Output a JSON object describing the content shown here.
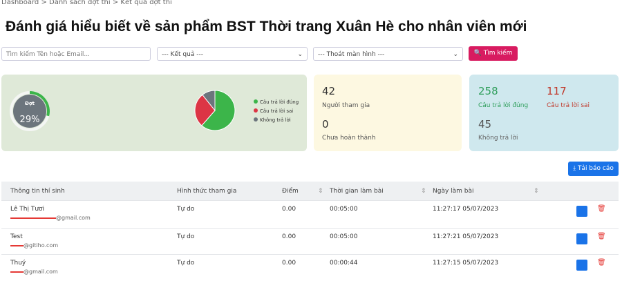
{
  "breadcrumb": [
    "Dashboard",
    "Danh sách đợt thi",
    "Kết quả đợt thi"
  ],
  "title": "Đánh giá hiểu biết về sản phẩm BST Thời trang Xuân Hè cho nhân viên mới",
  "filters": {
    "search_placeholder": "Tìm kiếm Tên hoặc Email...",
    "result_select": "--- Kết quả ---",
    "exit_select": "--- Thoát màn hình ---",
    "search_button": "Tìm kiếm"
  },
  "gauge": {
    "label": "Đợt",
    "value": 29,
    "value_label": "29%"
  },
  "stats": {
    "participants": {
      "value": 42,
      "label": "Người tham gia"
    },
    "not_completed": {
      "value": 0,
      "label": "Chưa hoàn thành"
    },
    "correct": {
      "value": 258,
      "label": "Câu trả lời đúng",
      "color": "#3cb54a"
    },
    "wrong": {
      "value": 117,
      "label": "Câu trả lời sai",
      "color": "#dc3545"
    },
    "no_answer": {
      "value": 45,
      "label": "Không trả lời",
      "color": "#6c757d"
    }
  },
  "legend": [
    "Câu trả lời đúng",
    "Câu trả lời sai",
    "Không trả lời"
  ],
  "download_button": "Tải báo cáo",
  "table": {
    "headers": [
      "Thông tin thí sinh",
      "Hình thức tham gia",
      "Điểm",
      "Thời gian làm bài",
      "Ngày làm bài"
    ],
    "rows": [
      [
        "Lê Thị Tươi",
        "@gmail.com",
        "Tự do",
        "0.00",
        "00:05:00",
        "11:27:17 05/07/2023"
      ],
      [
        "Test",
        "@gitiho.com",
        "Tự do",
        "0.00",
        "00:05:00",
        "11:27:21 05/07/2023"
      ],
      [
        "Thuý",
        "@gmail.com",
        "Tự do",
        "0.00",
        "00:00:44",
        "11:27:15 05/07/2023"
      ]
    ]
  }
}
